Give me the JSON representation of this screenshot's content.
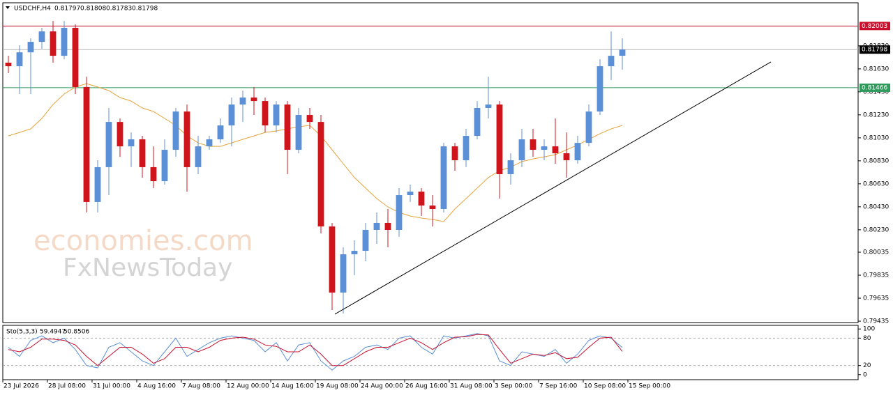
{
  "chart_data": [
    {
      "type": "candlestick",
      "title": "USDCHF,H4",
      "header_values": [
        0.81797,
        0.81808,
        0.81783,
        0.81798
      ],
      "watermark": [
        "economies.com",
        "FxNewsToday"
      ],
      "xlim": [
        0,
        76.625
      ],
      "xticks": [
        {
          "value": 0,
          "label": "23 Jul 2026"
        },
        {
          "value": 4,
          "label": "28 Jul 08:00"
        },
        {
          "value": 8,
          "label": "31 Jul 00:00"
        },
        {
          "value": 12,
          "label": "4 Aug 16:00"
        },
        {
          "value": 16,
          "label": "7 Aug 08:00"
        },
        {
          "value": 20,
          "label": "12 Aug 00:00"
        },
        {
          "value": 24,
          "label": "14 Aug 16:00"
        },
        {
          "value": 28,
          "label": "19 Aug 08:00"
        },
        {
          "value": 32,
          "label": "24 Aug 00:00"
        },
        {
          "value": 36,
          "label": "26 Aug 16:00"
        },
        {
          "value": 40,
          "label": "31 Aug 08:00"
        },
        {
          "value": 44,
          "label": "3 Sep 00:00"
        },
        {
          "value": 48,
          "label": "7 Sep 16:00"
        },
        {
          "value": 52,
          "label": "10 Sep 08:00"
        },
        {
          "value": 56,
          "label": "15 Sep 00:00"
        }
      ],
      "ylim": [
        0.79423,
        0.82205
      ],
      "yticks": [
        {
          "value": 0.8183,
          "label": "0.81830"
        },
        {
          "value": 0.8163,
          "label": "0.81630"
        },
        {
          "value": 0.8143,
          "label": "0.81430"
        },
        {
          "value": 0.8123,
          "label": "0.81230"
        },
        {
          "value": 0.8103,
          "label": "0.81030"
        },
        {
          "value": 0.8083,
          "label": "0.80830"
        },
        {
          "value": 0.8063,
          "label": "0.80630"
        },
        {
          "value": 0.8043,
          "label": "0.80430"
        },
        {
          "value": 0.8023,
          "label": "0.80230"
        },
        0.80035,
        0.79835,
        0.79635,
        0.79435
      ],
      "up_color": "#5b8fd6",
      "down_color": "#d0141b",
      "open": [
        0.81684,
        0.81653,
        0.81774,
        0.81865,
        0.81956,
        0.81744,
        0.81987,
        0.81472,
        0.80472,
        0.80775,
        0.81168,
        0.80956,
        0.81017,
        0.80775,
        0.80653,
        0.80926,
        0.81259,
        0.80775,
        0.80956,
        0.81017,
        0.81138,
        0.8132,
        0.81381,
        0.8135,
        0.81138,
        0.8132,
        0.80926,
        0.81229,
        0.81168,
        0.80259,
        0.79684,
        0.80017,
        0.80047,
        0.80229,
        0.8029,
        0.80229,
        0.80532,
        0.80562,
        0.80441,
        0.80411,
        0.80956,
        0.80835,
        0.81047,
        0.8129,
        0.8132,
        0.80714,
        0.80835,
        0.81017,
        0.80926,
        0.80956,
        0.80896,
        0.80835,
        0.80986,
        0.81259,
        0.81653,
        0.81744
      ],
      "high": [
        0.81744,
        0.81835,
        0.81896,
        0.81987,
        0.82047,
        0.82047,
        0.82017,
        0.81562,
        0.80835,
        0.8129,
        0.81199,
        0.81077,
        0.81047,
        0.80956,
        0.81017,
        0.8129,
        0.8132,
        0.81047,
        0.81047,
        0.81199,
        0.81381,
        0.81441,
        0.81472,
        0.81381,
        0.8135,
        0.8135,
        0.8129,
        0.8129,
        0.81229,
        0.8029,
        0.80078,
        0.80138,
        0.8029,
        0.80381,
        0.80411,
        0.80593,
        0.80623,
        0.80593,
        0.80532,
        0.80986,
        0.80986,
        0.81108,
        0.8135,
        0.81562,
        0.8135,
        0.80896,
        0.81108,
        0.81108,
        0.81017,
        0.81199,
        0.81077,
        0.81047,
        0.8132,
        0.81714,
        0.81956,
        0.81896
      ],
      "low": [
        0.81593,
        0.81411,
        0.81411,
        0.81805,
        0.81684,
        0.81714,
        0.81411,
        0.80381,
        0.80381,
        0.80532,
        0.80865,
        0.80775,
        0.80684,
        0.80593,
        0.80623,
        0.80865,
        0.80562,
        0.80714,
        0.80926,
        0.80986,
        0.80956,
        0.81168,
        0.81229,
        0.81077,
        0.81077,
        0.80714,
        0.80896,
        0.81108,
        0.80199,
        0.79532,
        0.79502,
        0.79835,
        0.79956,
        0.80108,
        0.80078,
        0.80169,
        0.80472,
        0.8035,
        0.80259,
        0.80381,
        0.80744,
        0.80775,
        0.81017,
        0.81199,
        0.80502,
        0.80623,
        0.80775,
        0.80865,
        0.80835,
        0.80805,
        0.80684,
        0.80805,
        0.80956,
        0.81229,
        0.81532,
        0.81623
      ],
      "close": [
        0.81653,
        0.81774,
        0.81865,
        0.81956,
        0.81744,
        0.81987,
        0.81472,
        0.80472,
        0.80775,
        0.81168,
        0.80956,
        0.81017,
        0.80775,
        0.80653,
        0.80926,
        0.81259,
        0.80775,
        0.80956,
        0.81017,
        0.81138,
        0.8132,
        0.81381,
        0.8135,
        0.81138,
        0.8132,
        0.80926,
        0.81229,
        0.81168,
        0.80259,
        0.79684,
        0.80017,
        0.80047,
        0.80229,
        0.8029,
        0.80229,
        0.80532,
        0.80562,
        0.80441,
        0.80411,
        0.80956,
        0.80835,
        0.81047,
        0.8129,
        0.8132,
        0.80714,
        0.80835,
        0.81017,
        0.80926,
        0.80956,
        0.80896,
        0.80835,
        0.80986,
        0.81259,
        0.81653,
        0.81744,
        0.81798
      ],
      "ma": {
        "color": "#e8a33c",
        "values": [
          0.81047,
          0.81077,
          0.81108,
          0.81199,
          0.8132,
          0.81411,
          0.81472,
          0.81502,
          0.81472,
          0.81441,
          0.81381,
          0.8135,
          0.8129,
          0.81259,
          0.81199,
          0.81138,
          0.81047,
          0.80986,
          0.80956,
          0.80956,
          0.80986,
          0.81017,
          0.81047,
          0.81077,
          0.8109,
          0.81108,
          0.81126,
          0.81138,
          0.81047,
          0.80926,
          0.80805,
          0.80684,
          0.80593,
          0.80502,
          0.80429,
          0.80381,
          0.8035,
          0.80332,
          0.8032,
          0.80302,
          0.80411,
          0.80502,
          0.80593,
          0.80684,
          0.80744,
          0.80775,
          0.80823,
          0.80847,
          0.80865,
          0.80884,
          0.80926,
          0.80968,
          0.81017,
          0.81066,
          0.81108,
          0.81138
        ]
      },
      "levels": [
        {
          "value": 0.82003,
          "color": "#c8102e"
        },
        {
          "value": 0.81798,
          "color": "#000000"
        },
        {
          "value": 0.81466,
          "color": "#2e9a5c"
        }
      ],
      "trendline": {
        "color": "#000000",
        "x": [
          29.75,
          68.81
        ],
        "y": [
          0.79496,
          0.8169
        ]
      }
    },
    {
      "type": "line",
      "title": "Sto(5,3,3)",
      "xlim": [
        0,
        76.625
      ],
      "ylim": [
        -11,
        108
      ],
      "yticks": [
        100,
        80,
        20,
        0
      ],
      "levels": [
        80,
        20
      ],
      "series": [
        {
          "color": "#5b8fd6",
          "values": [
            60,
            40,
            75,
            85,
            70,
            80,
            55,
            20,
            15,
            60,
            70,
            50,
            30,
            20,
            50,
            80,
            40,
            55,
            70,
            80,
            85,
            80,
            75,
            50,
            70,
            30,
            65,
            70,
            30,
            10,
            30,
            40,
            60,
            65,
            55,
            80,
            85,
            60,
            45,
            85,
            80,
            85,
            90,
            85,
            30,
            20,
            50,
            45,
            40,
            55,
            25,
            45,
            75,
            85,
            80,
            59.4947
          ]
        },
        {
          "color": "#c8102e",
          "values": [
            55,
            50,
            60,
            78,
            78,
            75,
            65,
            40,
            20,
            40,
            60,
            60,
            45,
            25,
            35,
            60,
            60,
            50,
            60,
            75,
            80,
            82,
            78,
            65,
            62,
            50,
            50,
            65,
            45,
            20,
            20,
            35,
            50,
            60,
            60,
            70,
            80,
            70,
            55,
            70,
            82,
            83,
            88,
            87,
            55,
            25,
            35,
            45,
            42,
            48,
            35,
            38,
            60,
            80,
            82,
            50.8506
          ]
        }
      ]
    }
  ]
}
